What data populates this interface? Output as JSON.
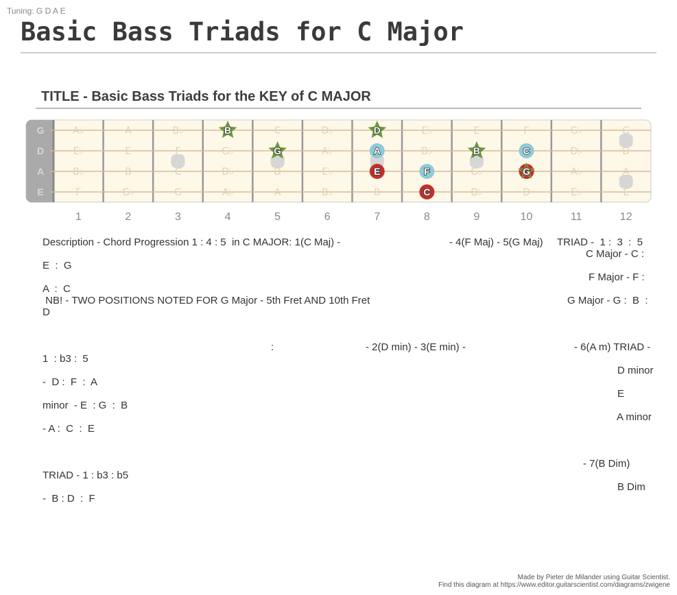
{
  "header": {
    "tuning": "Tuning: G D A E",
    "title": "Basic Bass Triads for C Major"
  },
  "diagram_title": "TITLE - Basic Bass Triads for the KEY of C MAJOR",
  "fretboard": {
    "strings": [
      "G",
      "D",
      "A",
      "E"
    ],
    "fret_numbers": [
      "1",
      "2",
      "3",
      "4",
      "5",
      "6",
      "7",
      "8",
      "9",
      "10",
      "11",
      "12"
    ],
    "ghost_notes": [
      [
        "A♭",
        "A",
        "B♭",
        "B",
        "C",
        "D♭",
        "D",
        "E♭",
        "E",
        "F",
        "G♭",
        "G"
      ],
      [
        "E♭",
        "E",
        "F",
        "G♭",
        "G",
        "A♭",
        "A",
        "B♭",
        "B",
        "C",
        "D♭",
        "D"
      ],
      [
        "B♭",
        "B",
        "C",
        "D♭",
        "D",
        "E♭",
        "E",
        "F",
        "G♭",
        "G",
        "A♭",
        "A"
      ],
      [
        "F",
        "G♭",
        "G",
        "A♭",
        "A",
        "B♭",
        "B",
        "C",
        "D♭",
        "D",
        "E♭",
        "E"
      ]
    ],
    "inlays": [
      {
        "fret": 3,
        "row": 1.5
      },
      {
        "fret": 5,
        "row": 1.5
      },
      {
        "fret": 7,
        "row": 1.5
      },
      {
        "fret": 9,
        "row": 1.5
      },
      {
        "fret": 12,
        "row": 0.5
      },
      {
        "fret": 12,
        "row": 2.5
      }
    ],
    "markers": [
      {
        "string": 0,
        "fret": 4,
        "label": "B",
        "shape": "star",
        "color": "#6a9a3c"
      },
      {
        "string": 0,
        "fret": 7,
        "label": "D",
        "shape": "star",
        "color": "#6a9a3c"
      },
      {
        "string": 1,
        "fret": 5,
        "label": "G",
        "shape": "star",
        "color": "#6a9a3c"
      },
      {
        "string": 1,
        "fret": 7,
        "label": "A",
        "shape": "circle",
        "color": "#8ecbd8"
      },
      {
        "string": 1,
        "fret": 9,
        "label": "B",
        "shape": "star",
        "color": "#6a9a3c"
      },
      {
        "string": 1,
        "fret": 10,
        "label": "C",
        "shape": "circle",
        "color": "#8ecbd8"
      },
      {
        "string": 2,
        "fret": 7,
        "label": "E",
        "shape": "circle",
        "color": "#c0302a"
      },
      {
        "string": 2,
        "fret": 8,
        "label": "F",
        "shape": "circle",
        "color": "#8ecbd8"
      },
      {
        "string": 2,
        "fret": 10,
        "label": "G",
        "shape": "circlestar",
        "color": "#c0302a"
      },
      {
        "string": 3,
        "fret": 8,
        "label": "C",
        "shape": "circle",
        "color": "#c0302a"
      }
    ],
    "colors": {
      "board": "#fdf8e8",
      "nut": "#aaaaaa",
      "fret": "#999999",
      "string": "#d9b99b",
      "ghost_text": "#ddd2b8",
      "inlay": "#d6d6d6"
    }
  },
  "description": {
    "line1_left": "Description - Chord Progression 1 : 4 : 5  in C MAJOR: 1(C Maj) -",
    "line1_mid": "- 4(F Maj) - 5(G Maj)",
    "line1_right": "TRIAD -  1 :  3  :  5",
    "c_major": "C Major - C :",
    "e_g": "E  :  G",
    "f_major": "F Major - F :",
    "a_c": "A  :  C",
    "nb": " NB! - TWO POSITIONS NOTED FOR G Major - 5th Fret AND 10th Fret",
    "g_major": "G Major - G :  B  :",
    "d": "D",
    "colon": ":",
    "minor_mid": "- 2(D min) - 3(E min) -",
    "minor_right": "- 6(A m) TRIAD -",
    "minor_formula": "1  : b3 :  5",
    "d_minor": "D minor",
    "d_f_a": "-  D :  F  :  A",
    "e": "E",
    "e_minor": "minor  - E  : G  :  B",
    "a_minor": "A minor",
    "a_c_e": "- A :  C  :  E",
    "dim_right": "- 7(B Dim)",
    "dim_formula": "TRIAD - 1 : b3 : b5",
    "b_dim": "B Dim",
    "b_d_f": "-  B : D  :  F"
  },
  "footer": {
    "line1": "Made by Pieter de Milander using Guitar Scientist.",
    "line2": "Find this diagram at https://www.editor.guitarscientist.com/diagrams/zwigene"
  }
}
